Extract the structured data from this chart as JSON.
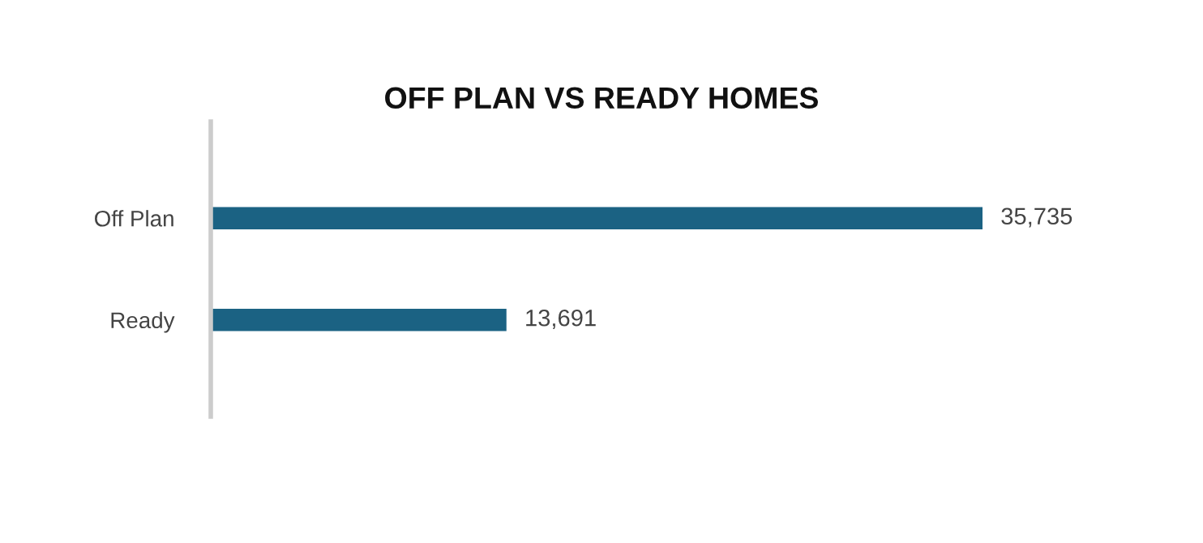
{
  "chart_data": {
    "type": "bar",
    "orientation": "horizontal",
    "title": "OFF PLAN VS READY HOMES",
    "categories": [
      "Off Plan",
      "Ready"
    ],
    "values": [
      35735,
      13691
    ],
    "value_labels": [
      "35,735",
      "13,691"
    ],
    "color": "#1b6283",
    "grid": false,
    "legend": false
  }
}
